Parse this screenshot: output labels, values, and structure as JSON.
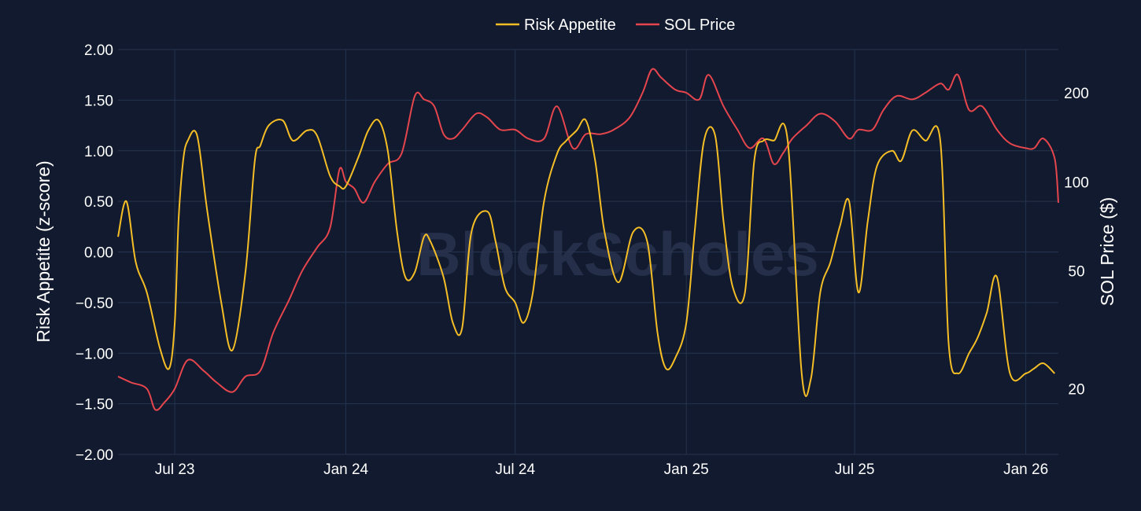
{
  "chart_data": {
    "type": "line",
    "watermark": "BlockScholes",
    "colors": {
      "background": "#111a2e",
      "grid": "#26344f",
      "risk_appetite": "#f5be26",
      "sol_price": "#e5454d"
    },
    "legend": {
      "placement": "top-center",
      "items": [
        "Risk Appetite",
        "SOL Price"
      ]
    },
    "x_axis": {
      "ticks": [
        {
          "date": "2023-07-01",
          "label": "Jul 23"
        },
        {
          "date": "2024-01-01",
          "label": "Jan 24"
        },
        {
          "date": "2024-07-01",
          "label": "Jul 24"
        },
        {
          "date": "2025-01-01",
          "label": "Jan 25"
        },
        {
          "date": "2025-07-01",
          "label": "Jul 25"
        },
        {
          "date": "2026-01-01",
          "label": "Jan 26"
        }
      ],
      "range": [
        "2023-05-01",
        "2026-02-05"
      ]
    },
    "y_left": {
      "label": "Risk Appetite (z-score)",
      "range": [
        -2,
        2
      ],
      "ticks": [
        "−2.00",
        "−1.50",
        "−1.00",
        "−0.50",
        "0.00",
        "0.50",
        "1.00",
        "1.50",
        "2.00"
      ],
      "tick_values": [
        -2,
        -1.5,
        -1,
        -0.5,
        0,
        0.5,
        1,
        1.5,
        2
      ]
    },
    "y_right": {
      "label": "SOL Price ($)",
      "scale": "log",
      "range": [
        12,
        280
      ],
      "ticks": [
        "20",
        "50",
        "100",
        "200"
      ],
      "tick_values": [
        20,
        50,
        100,
        200
      ]
    },
    "grid": true,
    "series": [
      {
        "name": "Risk Appetite",
        "axis": "left",
        "x": [
          "2023-05-01",
          "2023-05-10",
          "2023-05-20",
          "2023-06-01",
          "2023-06-15",
          "2023-06-25",
          "2023-07-01",
          "2023-07-05",
          "2023-07-10",
          "2023-07-15",
          "2023-07-25",
          "2023-08-05",
          "2023-08-20",
          "2023-09-01",
          "2023-09-15",
          "2023-09-25",
          "2023-10-01",
          "2023-10-10",
          "2023-10-25",
          "2023-11-05",
          "2023-11-20",
          "2023-12-01",
          "2023-12-15",
          "2023-12-25",
          "2024-01-01",
          "2024-01-15",
          "2024-01-25",
          "2024-02-05",
          "2024-02-15",
          "2024-02-25",
          "2024-03-05",
          "2024-03-15",
          "2024-03-25",
          "2024-04-01",
          "2024-04-15",
          "2024-04-25",
          "2024-05-05",
          "2024-05-15",
          "2024-06-01",
          "2024-06-10",
          "2024-06-20",
          "2024-07-01",
          "2024-07-10",
          "2024-07-20",
          "2024-08-01",
          "2024-08-15",
          "2024-08-25",
          "2024-09-05",
          "2024-09-15",
          "2024-09-25",
          "2024-10-05",
          "2024-10-20",
          "2024-11-05",
          "2024-11-20",
          "2024-12-01",
          "2024-12-10",
          "2024-12-20",
          "2025-01-01",
          "2025-01-10",
          "2025-01-20",
          "2025-02-01",
          "2025-02-10",
          "2025-02-20",
          "2025-03-05",
          "2025-03-15",
          "2025-03-25",
          "2025-04-05",
          "2025-04-20",
          "2025-05-05",
          "2025-05-15",
          "2025-05-25",
          "2025-06-05",
          "2025-06-15",
          "2025-06-25",
          "2025-07-05",
          "2025-07-15",
          "2025-07-25",
          "2025-08-10",
          "2025-08-20",
          "2025-09-01",
          "2025-09-15",
          "2025-10-01",
          "2025-10-10",
          "2025-10-20",
          "2025-11-01",
          "2025-11-10",
          "2025-11-20",
          "2025-12-01",
          "2025-12-15",
          "2026-01-01",
          "2026-01-10",
          "2026-01-20",
          "2026-02-01"
        ],
        "y": [
          0.15,
          0.5,
          -0.1,
          -0.4,
          -0.95,
          -1.15,
          -0.7,
          0.3,
          0.9,
          1.1,
          1.15,
          0.4,
          -0.5,
          -0.97,
          -0.2,
          0.9,
          1.05,
          1.25,
          1.3,
          1.1,
          1.2,
          1.15,
          0.75,
          0.65,
          0.65,
          0.95,
          1.2,
          1.3,
          1.0,
          0.2,
          -0.25,
          -0.2,
          0.15,
          0.1,
          -0.25,
          -0.7,
          -0.75,
          0.2,
          0.4,
          0.1,
          -0.35,
          -0.5,
          -0.7,
          -0.4,
          0.5,
          0.97,
          1.1,
          1.2,
          1.3,
          0.9,
          0.2,
          -0.3,
          0.2,
          0.1,
          -0.8,
          -1.15,
          -1.05,
          -0.7,
          0.2,
          1.1,
          1.15,
          0.3,
          -0.35,
          -0.4,
          0.9,
          1.1,
          1.1,
          1.1,
          -1.2,
          -1.25,
          -0.4,
          -0.1,
          0.25,
          0.5,
          -0.4,
          0.3,
          0.85,
          1.0,
          0.9,
          1.2,
          1.1,
          1.1,
          -0.9,
          -1.2,
          -1.0,
          -0.85,
          -0.6,
          -0.25,
          -1.2,
          -1.2,
          -1.15,
          -1.1,
          -1.2
        ]
      },
      {
        "name": "SOL Price",
        "axis": "right",
        "x": [
          "2023-05-01",
          "2023-05-15",
          "2023-06-01",
          "2023-06-10",
          "2023-06-20",
          "2023-07-01",
          "2023-07-15",
          "2023-08-01",
          "2023-08-15",
          "2023-09-01",
          "2023-09-15",
          "2023-10-01",
          "2023-10-15",
          "2023-11-01",
          "2023-11-15",
          "2023-12-01",
          "2023-12-15",
          "2023-12-25",
          "2024-01-01",
          "2024-01-10",
          "2024-01-20",
          "2024-02-01",
          "2024-02-15",
          "2024-03-01",
          "2024-03-15",
          "2024-03-25",
          "2024-04-05",
          "2024-04-15",
          "2024-04-25",
          "2024-05-05",
          "2024-05-20",
          "2024-06-01",
          "2024-06-15",
          "2024-07-01",
          "2024-07-15",
          "2024-08-01",
          "2024-08-15",
          "2024-09-01",
          "2024-09-15",
          "2024-10-01",
          "2024-10-15",
          "2024-11-01",
          "2024-11-15",
          "2024-11-25",
          "2024-12-05",
          "2024-12-20",
          "2025-01-01",
          "2025-01-15",
          "2025-01-25",
          "2025-02-10",
          "2025-02-25",
          "2025-03-10",
          "2025-03-25",
          "2025-04-05",
          "2025-04-15",
          "2025-04-25",
          "2025-05-10",
          "2025-05-25",
          "2025-06-10",
          "2025-06-25",
          "2025-07-05",
          "2025-07-20",
          "2025-08-01",
          "2025-08-15",
          "2025-09-01",
          "2025-09-15",
          "2025-10-01",
          "2025-10-10",
          "2025-10-20",
          "2025-11-01",
          "2025-11-15",
          "2025-12-01",
          "2025-12-15",
          "2026-01-01",
          "2026-01-10",
          "2026-01-20",
          "2026-02-01",
          "2026-02-05"
        ],
        "y": [
          22,
          21,
          20,
          17,
          18,
          20,
          25,
          23,
          21,
          19.5,
          22,
          23,
          31,
          40,
          50,
          60,
          70,
          110,
          100,
          95,
          85,
          100,
          115,
          125,
          195,
          190,
          180,
          145,
          140,
          150,
          170,
          165,
          150,
          150,
          140,
          140,
          180,
          130,
          145,
          145,
          150,
          165,
          200,
          240,
          225,
          205,
          200,
          190,
          230,
          180,
          150,
          130,
          140,
          115,
          125,
          140,
          155,
          170,
          160,
          140,
          150,
          150,
          175,
          195,
          190,
          200,
          215,
          205,
          230,
          175,
          180,
          150,
          135,
          130,
          130,
          140,
          120,
          85
        ]
      }
    ]
  }
}
